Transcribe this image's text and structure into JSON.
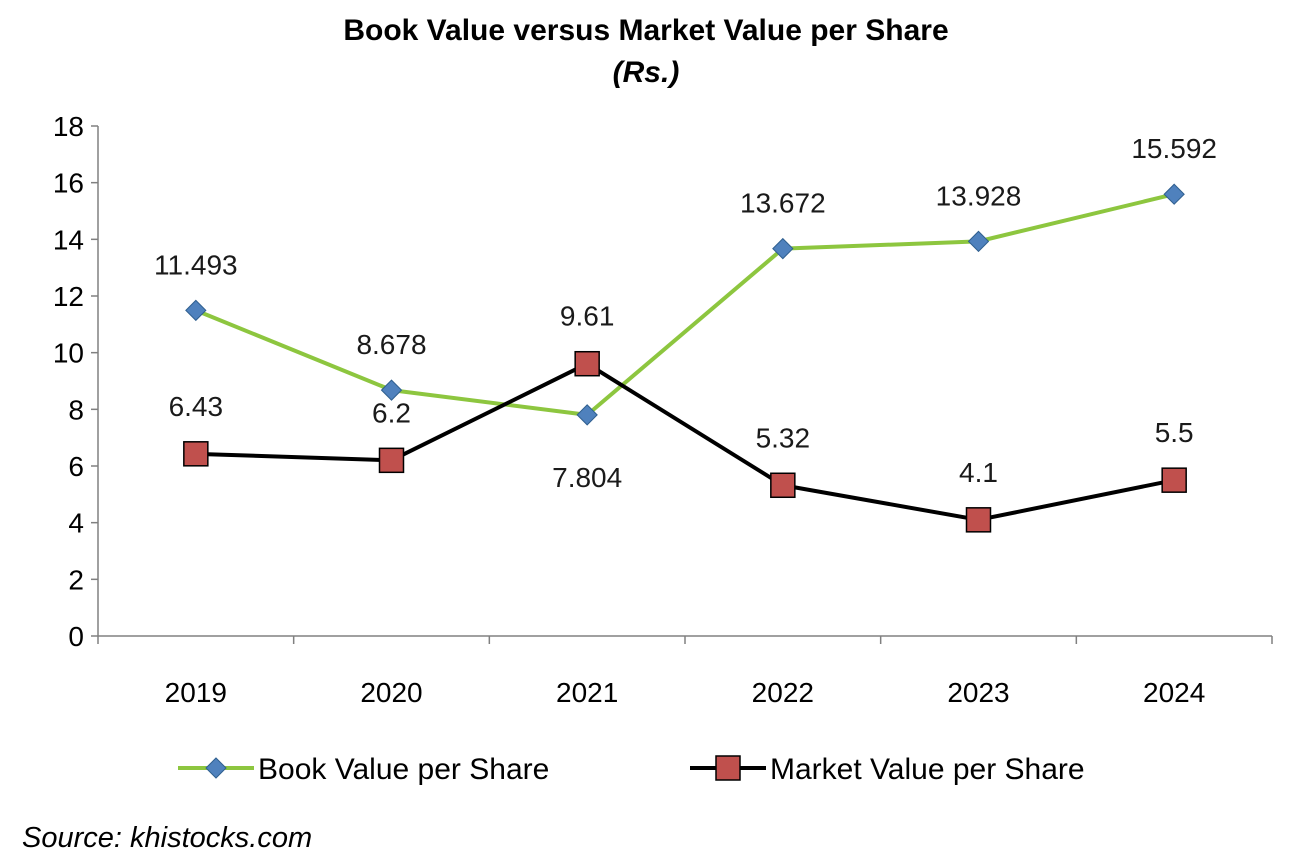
{
  "chart_data": {
    "type": "line",
    "title": "Book Value versus Market Value per Share",
    "subtitle": "(Rs.)",
    "xlabel": "",
    "ylabel": "",
    "categories": [
      "2019",
      "2020",
      "2021",
      "2022",
      "2023",
      "2024"
    ],
    "ylim": [
      0,
      18
    ],
    "yticks": [
      "0",
      "2",
      "4",
      "6",
      "8",
      "10",
      "12",
      "14",
      "16",
      "18"
    ],
    "grid": false,
    "legend_position": "bottom",
    "series": [
      {
        "name": "Book Value per Share",
        "values": [
          11.493,
          8.678,
          7.804,
          13.672,
          13.928,
          15.592
        ],
        "labels": [
          "11.493",
          "8.678",
          "7.804",
          "13.672",
          "13.928",
          "15.592"
        ],
        "color": "#8DC63F",
        "marker": "diamond",
        "marker_color": "#4F81BD"
      },
      {
        "name": "Market Value per Share",
        "values": [
          6.43,
          6.2,
          9.61,
          5.32,
          4.1,
          5.5
        ],
        "labels": [
          "6.43",
          "6.2",
          "9.61",
          "5.32",
          "4.1",
          "5.5"
        ],
        "color": "#000000",
        "marker": "square",
        "marker_color": "#C0504D"
      }
    ]
  },
  "source": "Source: khistocks.com"
}
